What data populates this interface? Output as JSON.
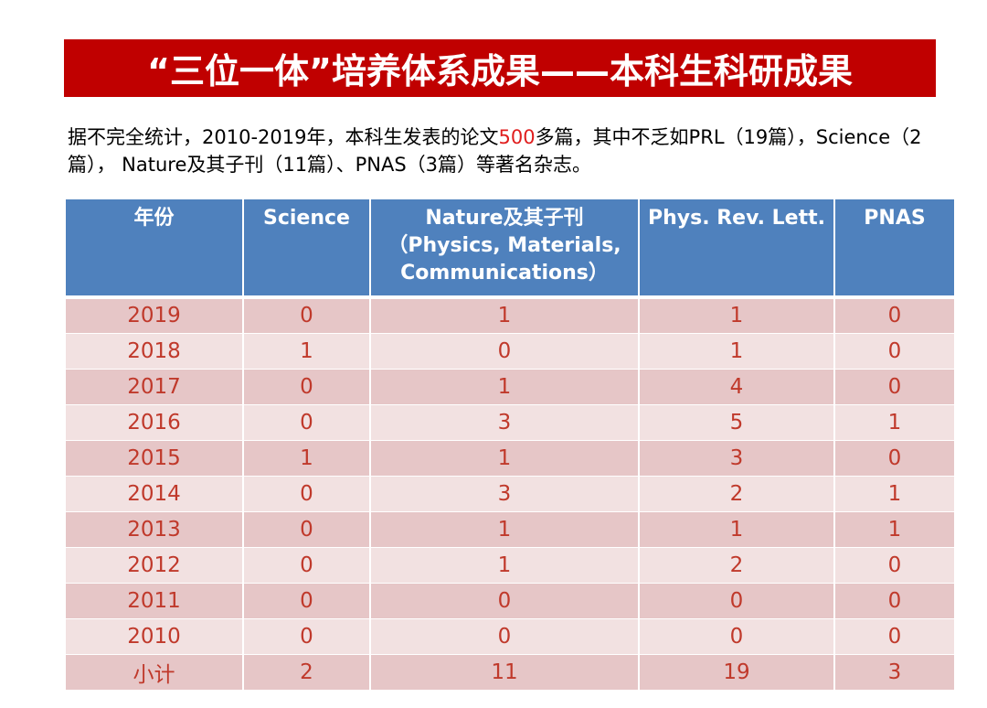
{
  "title": "“三位一体”培养体系成果——本科生科研成果",
  "intro": {
    "part1": "据不完全统计，2010-2019年，本科生发表的论文",
    "highlight": "500",
    "part2": "多篇，其中不乏如PRL（19篇），Science（2篇）， Nature及其子刊（11篇）、PNAS（3篇）等著名杂志。"
  },
  "colors": {
    "title_bg": "#c00000",
    "header_bg": "#4f81bd",
    "row_dark": "#e6c6c7",
    "row_light": "#f2e1e1",
    "cell_text": "#c0392b",
    "highlight": "#e01e1e"
  },
  "table": {
    "headers": [
      "年份",
      "Science",
      "Nature及其子刊（Physics, Materials, Communications）",
      "Phys. Rev. Lett.",
      "PNAS"
    ],
    "rows": [
      [
        "2019",
        "0",
        "1",
        "1",
        "0"
      ],
      [
        "2018",
        "1",
        "0",
        "1",
        "0"
      ],
      [
        "2017",
        "0",
        "1",
        "4",
        "0"
      ],
      [
        "2016",
        "0",
        "3",
        "5",
        "1"
      ],
      [
        "2015",
        "1",
        "1",
        "3",
        "0"
      ],
      [
        "2014",
        "0",
        "3",
        "2",
        "1"
      ],
      [
        "2013",
        "0",
        "1",
        "1",
        "1"
      ],
      [
        "2012",
        "0",
        "1",
        "2",
        "0"
      ],
      [
        "2011",
        "0",
        "0",
        "0",
        "0"
      ],
      [
        "2010",
        "0",
        "0",
        "0",
        "0"
      ],
      [
        "小计",
        "2",
        "11",
        "19",
        "3"
      ]
    ]
  }
}
